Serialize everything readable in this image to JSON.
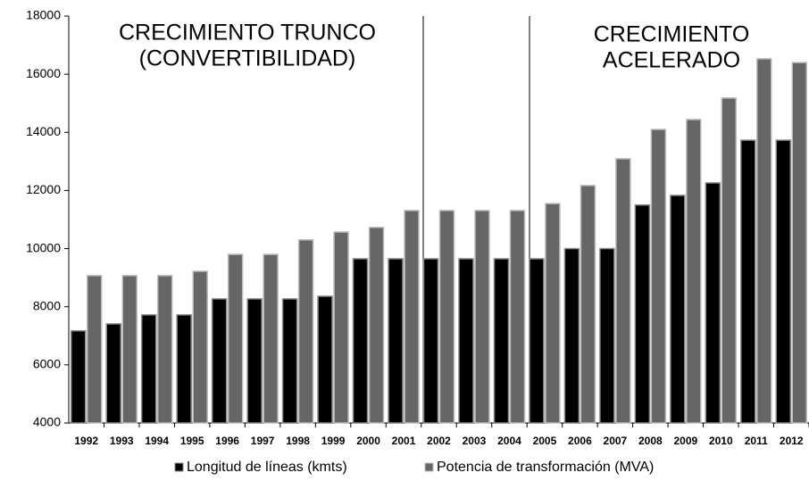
{
  "chart_data": {
    "type": "bar",
    "categories": [
      "1992",
      "1993",
      "1994",
      "1995",
      "1996",
      "1997",
      "1998",
      "1999",
      "2000",
      "2001",
      "2002",
      "2003",
      "2004",
      "2005",
      "2006",
      "2007",
      "2008",
      "2009",
      "2010",
      "2011",
      "2012"
    ],
    "series": [
      {
        "name": "Longitud de líneas (kmts)",
        "color": "#000000",
        "values": [
          7170,
          7410,
          7720,
          7720,
          8270,
          8270,
          8270,
          8360,
          9650,
          9650,
          9650,
          9650,
          9650,
          9650,
          10000,
          10000,
          11500,
          11830,
          12260,
          13730,
          13730
        ]
      },
      {
        "name": "Potencia de transformación (MVA)",
        "color": "#666666",
        "values": [
          9070,
          9070,
          9070,
          9220,
          9800,
          9800,
          10300,
          10570,
          10730,
          11310,
          11310,
          11310,
          11310,
          11550,
          12170,
          13090,
          14100,
          14440,
          15180,
          16530,
          16400
        ]
      }
    ],
    "ylim": [
      4000,
      18000
    ],
    "yticks": [
      4000,
      6000,
      8000,
      10000,
      12000,
      14000,
      16000,
      18000
    ],
    "annotations": [
      [
        "CRECIMIENTO TRUNCO",
        "(CONVERTIBILIDAD)"
      ],
      [
        "CRECIMIENTO",
        "ACELERADO"
      ]
    ],
    "grid": false
  }
}
